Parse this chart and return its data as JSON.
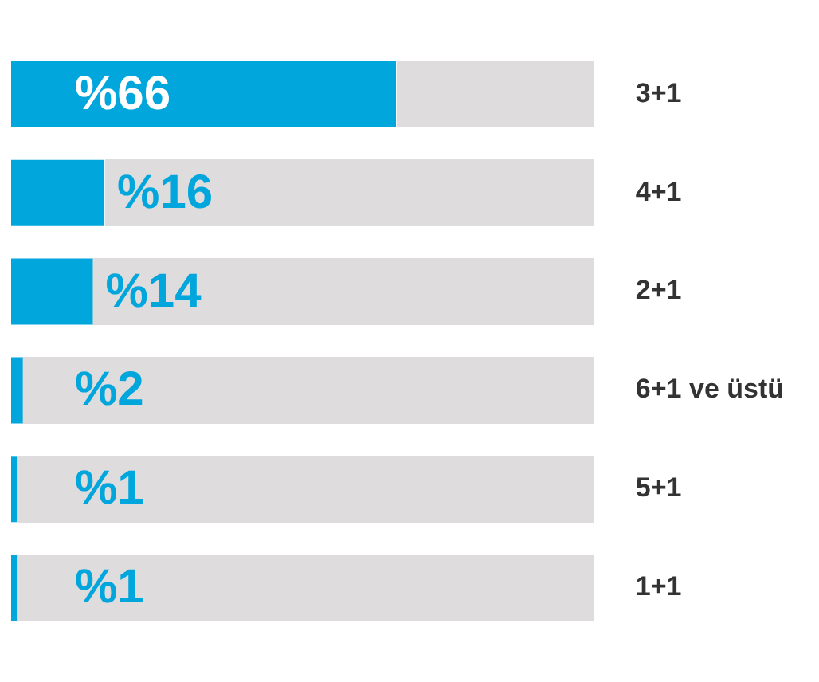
{
  "chart_data": {
    "type": "bar",
    "orientation": "horizontal",
    "categories": [
      "3+1",
      "4+1",
      "2+1",
      "6+1 ve üstü",
      "5+1",
      "1+1"
    ],
    "values": [
      66,
      16,
      14,
      2,
      1,
      1
    ],
    "color": "#00a6dc",
    "value_labels": [
      "%66",
      "%16",
      "%14",
      "%2",
      "%1",
      "%1"
    ],
    "xlim": [
      0,
      100
    ],
    "tick_labels": "y",
    "legend": false
  }
}
